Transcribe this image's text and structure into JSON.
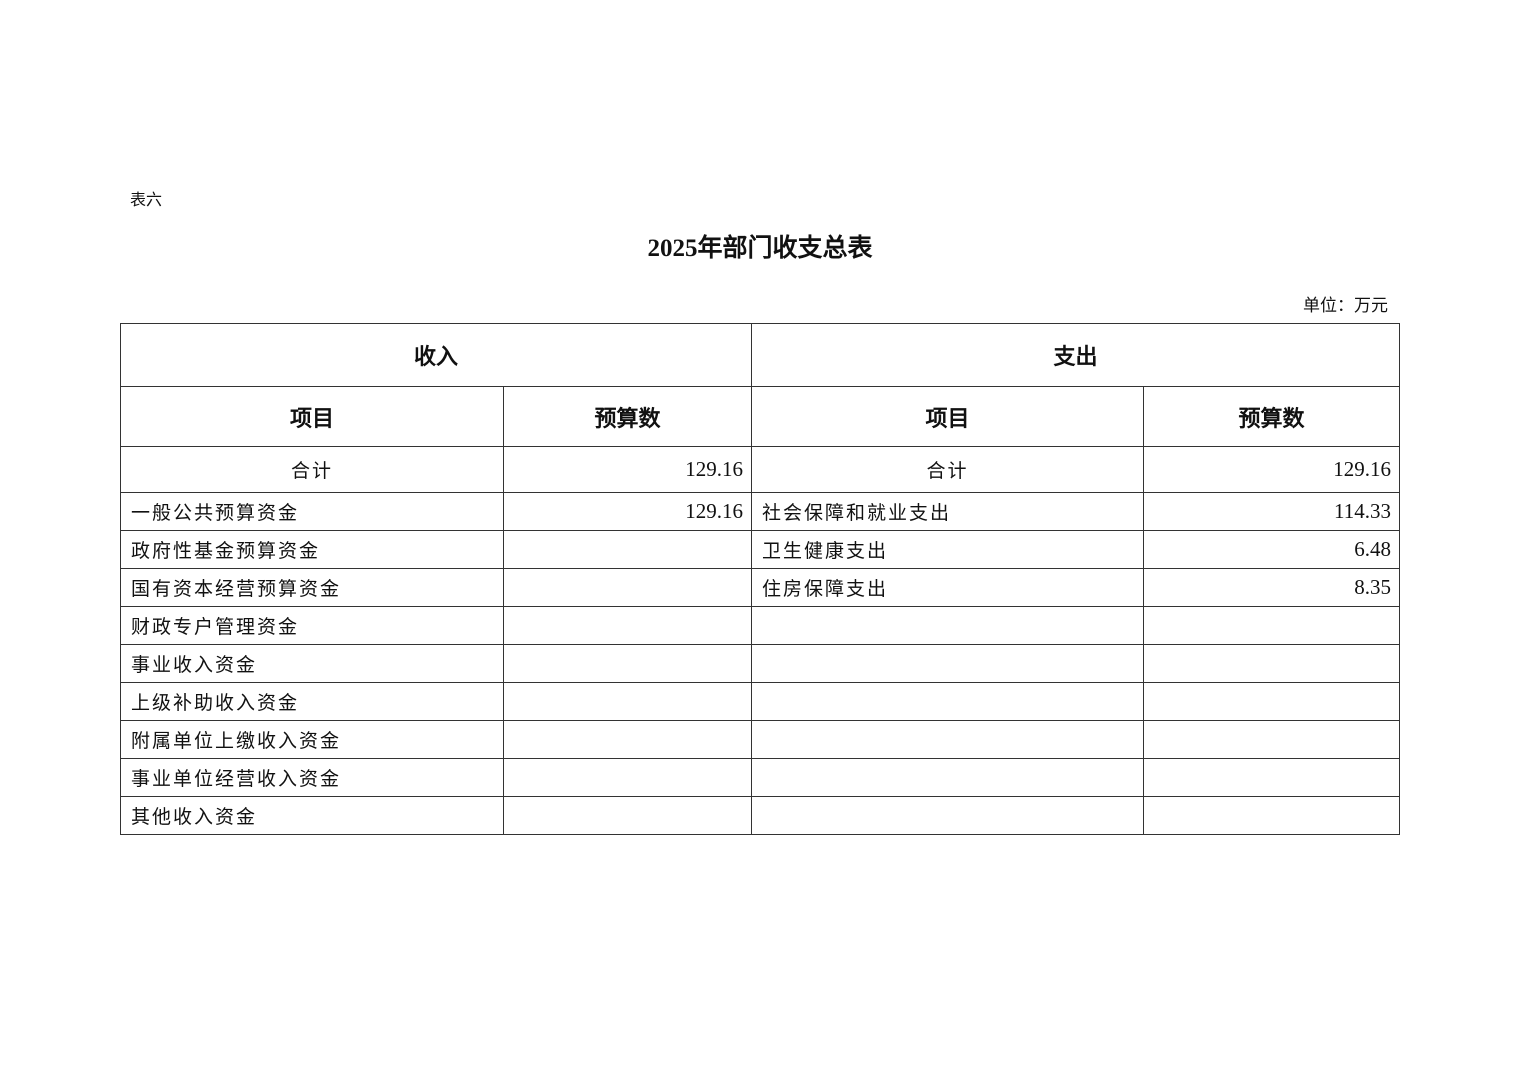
{
  "label": "表六",
  "title": "2025年部门收支总表",
  "unit": "单位：万元",
  "header": {
    "income": "收入",
    "expense": "支出",
    "item": "项目",
    "budget": "预算数"
  },
  "total": {
    "label": "合计",
    "income": "129.16",
    "expense": "129.16"
  },
  "rows": [
    {
      "income_item": "一般公共预算资金",
      "income_value": "129.16",
      "expense_item": "社会保障和就业支出",
      "expense_value": "114.33"
    },
    {
      "income_item": "政府性基金预算资金",
      "income_value": "",
      "expense_item": "卫生健康支出",
      "expense_value": "6.48"
    },
    {
      "income_item": "国有资本经营预算资金",
      "income_value": "",
      "expense_item": "住房保障支出",
      "expense_value": "8.35"
    },
    {
      "income_item": "财政专户管理资金",
      "income_value": "",
      "expense_item": "",
      "expense_value": ""
    },
    {
      "income_item": "事业收入资金",
      "income_value": "",
      "expense_item": "",
      "expense_value": ""
    },
    {
      "income_item": "上级补助收入资金",
      "income_value": "",
      "expense_item": "",
      "expense_value": ""
    },
    {
      "income_item": "附属单位上缴收入资金",
      "income_value": "",
      "expense_item": "",
      "expense_value": ""
    },
    {
      "income_item": "事业单位经营收入资金",
      "income_value": "",
      "expense_item": "",
      "expense_value": ""
    },
    {
      "income_item": "其他收入资金",
      "income_value": "",
      "expense_item": "",
      "expense_value": ""
    }
  ]
}
